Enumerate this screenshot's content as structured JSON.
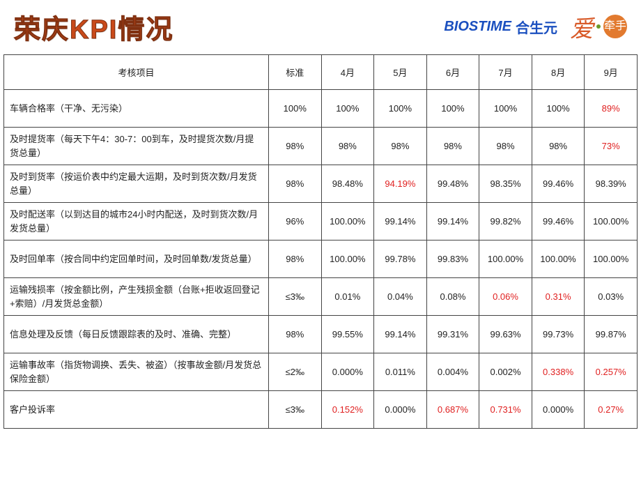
{
  "title_prefix": "荣庆",
  "title_suffix": "KPI情况",
  "logo": {
    "en": "BIOSTIME",
    "cn": "合生元",
    "love": "爱",
    "badge": "牵手"
  },
  "columns": [
    "考核项目",
    "标准",
    "4月",
    "5月",
    "6月",
    "7月",
    "8月",
    "9月"
  ],
  "rows": [
    {
      "item": "车辆合格率（干净、无污染）",
      "std": "100%",
      "cells": [
        {
          "v": "100%"
        },
        {
          "v": "100%"
        },
        {
          "v": "100%"
        },
        {
          "v": "100%"
        },
        {
          "v": "100%"
        },
        {
          "v": "89%",
          "red": true
        }
      ]
    },
    {
      "item": "及时提货率（每天下午4：30-7：00到车，及时提货次数/月提货总量）",
      "std": "98%",
      "cells": [
        {
          "v": "98%"
        },
        {
          "v": "98%"
        },
        {
          "v": "98%"
        },
        {
          "v": "98%"
        },
        {
          "v": "98%"
        },
        {
          "v": "73%",
          "red": true
        }
      ]
    },
    {
      "item": "及时到货率（按运价表中约定最大运期，及时到货次数/月发货总量）",
      "std": "98%",
      "cells": [
        {
          "v": "98.48%"
        },
        {
          "v": "94.19%",
          "red": true
        },
        {
          "v": "99.48%"
        },
        {
          "v": "98.35%"
        },
        {
          "v": "99.46%"
        },
        {
          "v": "98.39%"
        }
      ]
    },
    {
      "item": "及时配送率（以到达目的城市24小时内配送，及时到货次数/月发货总量）",
      "std": "96%",
      "cells": [
        {
          "v": "100.00%"
        },
        {
          "v": "99.14%"
        },
        {
          "v": "99.14%"
        },
        {
          "v": "99.82%"
        },
        {
          "v": "99.46%"
        },
        {
          "v": "100.00%"
        }
      ]
    },
    {
      "item": "及时回单率（按合同中约定回单时间，及时回单数/发货总量）",
      "std": "98%",
      "cells": [
        {
          "v": "100.00%"
        },
        {
          "v": "99.78%"
        },
        {
          "v": "99.83%"
        },
        {
          "v": "100.00%"
        },
        {
          "v": "100.00%"
        },
        {
          "v": "100.00%"
        }
      ]
    },
    {
      "item": "运输残损率（按金额比例，产生残损金额（台账+拒收返回登记+索赔）/月发货总金额）",
      "std": "≤3‰",
      "cells": [
        {
          "v": "0.01%"
        },
        {
          "v": "0.04%"
        },
        {
          "v": "0.08%"
        },
        {
          "v": "0.06%",
          "red": true
        },
        {
          "v": "0.31%",
          "red": true
        },
        {
          "v": "0.03%"
        }
      ]
    },
    {
      "item": "信息处理及反馈（每日反馈跟踪表的及时、准确、完整）",
      "std": "98%",
      "cells": [
        {
          "v": "99.55%"
        },
        {
          "v": "99.14%"
        },
        {
          "v": "99.31%"
        },
        {
          "v": "99.63%"
        },
        {
          "v": "99.73%"
        },
        {
          "v": "99.87%"
        }
      ]
    },
    {
      "item": "运输事故率（指货物调换、丢失、被盗）（按事故金额/月发货总保险金额）",
      "std": "≤2‰",
      "cells": [
        {
          "v": "0.000%"
        },
        {
          "v": "0.011%"
        },
        {
          "v": "0.004%"
        },
        {
          "v": "0.002%"
        },
        {
          "v": "0.338%",
          "red": true
        },
        {
          "v": "0.257%",
          "red": true
        }
      ]
    },
    {
      "item": "客户投诉率",
      "std": "≤3‰",
      "cells": [
        {
          "v": "0.152%",
          "red": true
        },
        {
          "v": "0.000%"
        },
        {
          "v": "0.687%",
          "red": true
        },
        {
          "v": "0.731%",
          "red": true
        },
        {
          "v": "0.000%"
        },
        {
          "v": "0.27%",
          "red": true
        }
      ]
    }
  ]
}
